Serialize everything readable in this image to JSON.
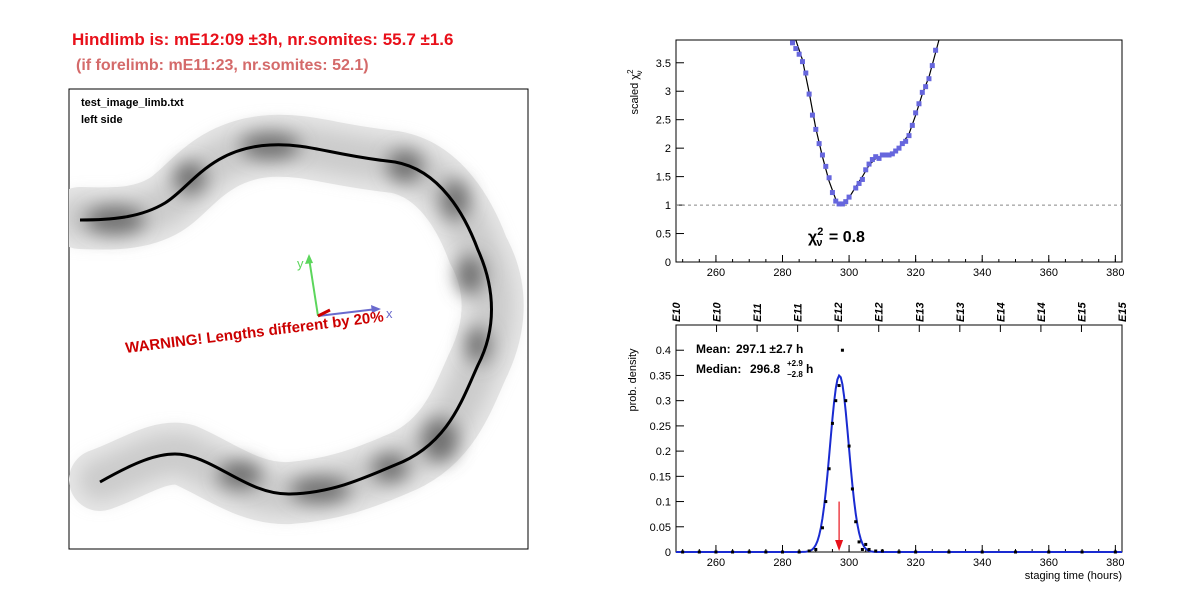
{
  "header": {
    "hindlimb_line": "Hindlimb is: mE12:09   ±3h,  nr.somites: 55.7   ±1.6",
    "forelimb_line": "(if forelimb: mE11:23,  nr.somites: 52.1)"
  },
  "image_panel": {
    "file_label": "test_image_limb.txt",
    "side_label": "left side",
    "warning": "WARNING! Lengths different by 20%",
    "axis_x_label": "x",
    "axis_y_label": "y",
    "colors": {
      "x_axis": "#6a6acd",
      "y_axis": "#5cd65c",
      "origin": "#cc0000",
      "warning": "#cc0000"
    }
  },
  "chart_data": [
    {
      "type": "scatter",
      "name": "chi2-vs-staging-time",
      "ylabel": "scaled χ²ν",
      "annotation": "χ²ν = 0.8",
      "xlim": [
        248,
        382
      ],
      "ylim": [
        0,
        3.9
      ],
      "x_ticks": [
        260,
        280,
        300,
        320,
        340,
        360,
        380
      ],
      "y_ticks": [
        0,
        0.5,
        1,
        1.5,
        2,
        2.5,
        3,
        3.5
      ],
      "reference_line_y": 1.0,
      "marker_color": "#6666dd",
      "points": [
        {
          "x": 283,
          "y": 3.85
        },
        {
          "x": 284,
          "y": 3.75
        },
        {
          "x": 285,
          "y": 3.65
        },
        {
          "x": 286,
          "y": 3.52
        },
        {
          "x": 287,
          "y": 3.32
        },
        {
          "x": 288,
          "y": 2.95
        },
        {
          "x": 289,
          "y": 2.58
        },
        {
          "x": 290,
          "y": 2.33
        },
        {
          "x": 291,
          "y": 2.08
        },
        {
          "x": 292,
          "y": 1.88
        },
        {
          "x": 293,
          "y": 1.68
        },
        {
          "x": 294,
          "y": 1.48
        },
        {
          "x": 295,
          "y": 1.22
        },
        {
          "x": 296,
          "y": 1.07
        },
        {
          "x": 297,
          "y": 1.02
        },
        {
          "x": 298,
          "y": 1.02
        },
        {
          "x": 299,
          "y": 1.06
        },
        {
          "x": 300,
          "y": 1.14
        },
        {
          "x": 302,
          "y": 1.3
        },
        {
          "x": 303,
          "y": 1.38
        },
        {
          "x": 304,
          "y": 1.45
        },
        {
          "x": 305,
          "y": 1.62
        },
        {
          "x": 306,
          "y": 1.72
        },
        {
          "x": 307,
          "y": 1.8
        },
        {
          "x": 308,
          "y": 1.85
        },
        {
          "x": 309,
          "y": 1.82
        },
        {
          "x": 310,
          "y": 1.88
        },
        {
          "x": 311,
          "y": 1.88
        },
        {
          "x": 312,
          "y": 1.88
        },
        {
          "x": 313,
          "y": 1.9
        },
        {
          "x": 314,
          "y": 1.95
        },
        {
          "x": 315,
          "y": 2.0
        },
        {
          "x": 316,
          "y": 2.08
        },
        {
          "x": 317,
          "y": 2.12
        },
        {
          "x": 318,
          "y": 2.22
        },
        {
          "x": 319,
          "y": 2.4
        },
        {
          "x": 320,
          "y": 2.62
        },
        {
          "x": 321,
          "y": 2.78
        },
        {
          "x": 322,
          "y": 2.98
        },
        {
          "x": 323,
          "y": 3.08
        },
        {
          "x": 324,
          "y": 3.22
        },
        {
          "x": 325,
          "y": 3.45
        },
        {
          "x": 326,
          "y": 3.72
        }
      ],
      "fit_curve": [
        {
          "x": 284,
          "y": 3.9
        },
        {
          "x": 286,
          "y": 3.55
        },
        {
          "x": 288,
          "y": 2.98
        },
        {
          "x": 290,
          "y": 2.35
        },
        {
          "x": 292,
          "y": 1.85
        },
        {
          "x": 294,
          "y": 1.42
        },
        {
          "x": 296,
          "y": 1.1
        },
        {
          "x": 297,
          "y": 1.02
        },
        {
          "x": 298,
          "y": 1.03
        },
        {
          "x": 300,
          "y": 1.13
        },
        {
          "x": 302,
          "y": 1.32
        },
        {
          "x": 304,
          "y": 1.5
        },
        {
          "x": 306,
          "y": 1.7
        },
        {
          "x": 308,
          "y": 1.82
        },
        {
          "x": 310,
          "y": 1.87
        },
        {
          "x": 312,
          "y": 1.89
        },
        {
          "x": 314,
          "y": 1.95
        },
        {
          "x": 316,
          "y": 2.08
        },
        {
          "x": 318,
          "y": 2.25
        },
        {
          "x": 320,
          "y": 2.58
        },
        {
          "x": 322,
          "y": 2.95
        },
        {
          "x": 324,
          "y": 3.25
        },
        {
          "x": 326,
          "y": 3.68
        },
        {
          "x": 327,
          "y": 3.9
        }
      ]
    },
    {
      "type": "line",
      "name": "probability-density",
      "xlabel": "staging time (hours)",
      "ylabel": "prob. density",
      "xlim": [
        248,
        382
      ],
      "ylim": [
        0,
        0.45
      ],
      "x_ticks": [
        260,
        280,
        300,
        320,
        340,
        360,
        380
      ],
      "y_ticks": [
        0,
        0.05,
        0.1,
        0.15,
        0.2,
        0.25,
        0.3,
        0.35,
        0.4
      ],
      "top_axis_labels": [
        "E10",
        "E10",
        "E11",
        "E11",
        "E12",
        "E12",
        "E13",
        "E13",
        "E14",
        "E14",
        "E15",
        "E15"
      ],
      "stats": {
        "mean_label": "Mean:",
        "mean_value": "297.1 ±2.7 h",
        "median_label": "Median:",
        "median_value": "296.8",
        "median_plus": "+2.9",
        "median_minus": "−2.8",
        "median_unit": "h"
      },
      "arrow_x": 297,
      "curve_color": "#1a2bd1",
      "arrow_color": "#e8101a",
      "gaussian": {
        "mean": 297.1,
        "peak": 0.35,
        "sigma": 2.8
      },
      "points": [
        {
          "x": 250,
          "y": 0.0
        },
        {
          "x": 255,
          "y": 0.0
        },
        {
          "x": 260,
          "y": 0.0
        },
        {
          "x": 265,
          "y": 0.0
        },
        {
          "x": 270,
          "y": 0.0
        },
        {
          "x": 275,
          "y": 0.0
        },
        {
          "x": 280,
          "y": 0.0
        },
        {
          "x": 285,
          "y": 0.0
        },
        {
          "x": 288,
          "y": 0.002
        },
        {
          "x": 290,
          "y": 0.005
        },
        {
          "x": 292,
          "y": 0.048
        },
        {
          "x": 293,
          "y": 0.1
        },
        {
          "x": 294,
          "y": 0.165
        },
        {
          "x": 295,
          "y": 0.255
        },
        {
          "x": 296,
          "y": 0.3
        },
        {
          "x": 297,
          "y": 0.33
        },
        {
          "x": 298,
          "y": 0.4
        },
        {
          "x": 299,
          "y": 0.3
        },
        {
          "x": 300,
          "y": 0.21
        },
        {
          "x": 301,
          "y": 0.125
        },
        {
          "x": 302,
          "y": 0.06
        },
        {
          "x": 303,
          "y": 0.02
        },
        {
          "x": 304,
          "y": 0.005
        },
        {
          "x": 305,
          "y": 0.015
        },
        {
          "x": 306,
          "y": 0.005
        },
        {
          "x": 308,
          "y": 0.002
        },
        {
          "x": 310,
          "y": 0.002
        },
        {
          "x": 315,
          "y": 0.0
        },
        {
          "x": 320,
          "y": 0.0
        },
        {
          "x": 330,
          "y": 0.0
        },
        {
          "x": 340,
          "y": 0.0
        },
        {
          "x": 350,
          "y": 0.0
        },
        {
          "x": 360,
          "y": 0.0
        },
        {
          "x": 370,
          "y": 0.0
        },
        {
          "x": 380,
          "y": 0.0
        }
      ]
    }
  ]
}
